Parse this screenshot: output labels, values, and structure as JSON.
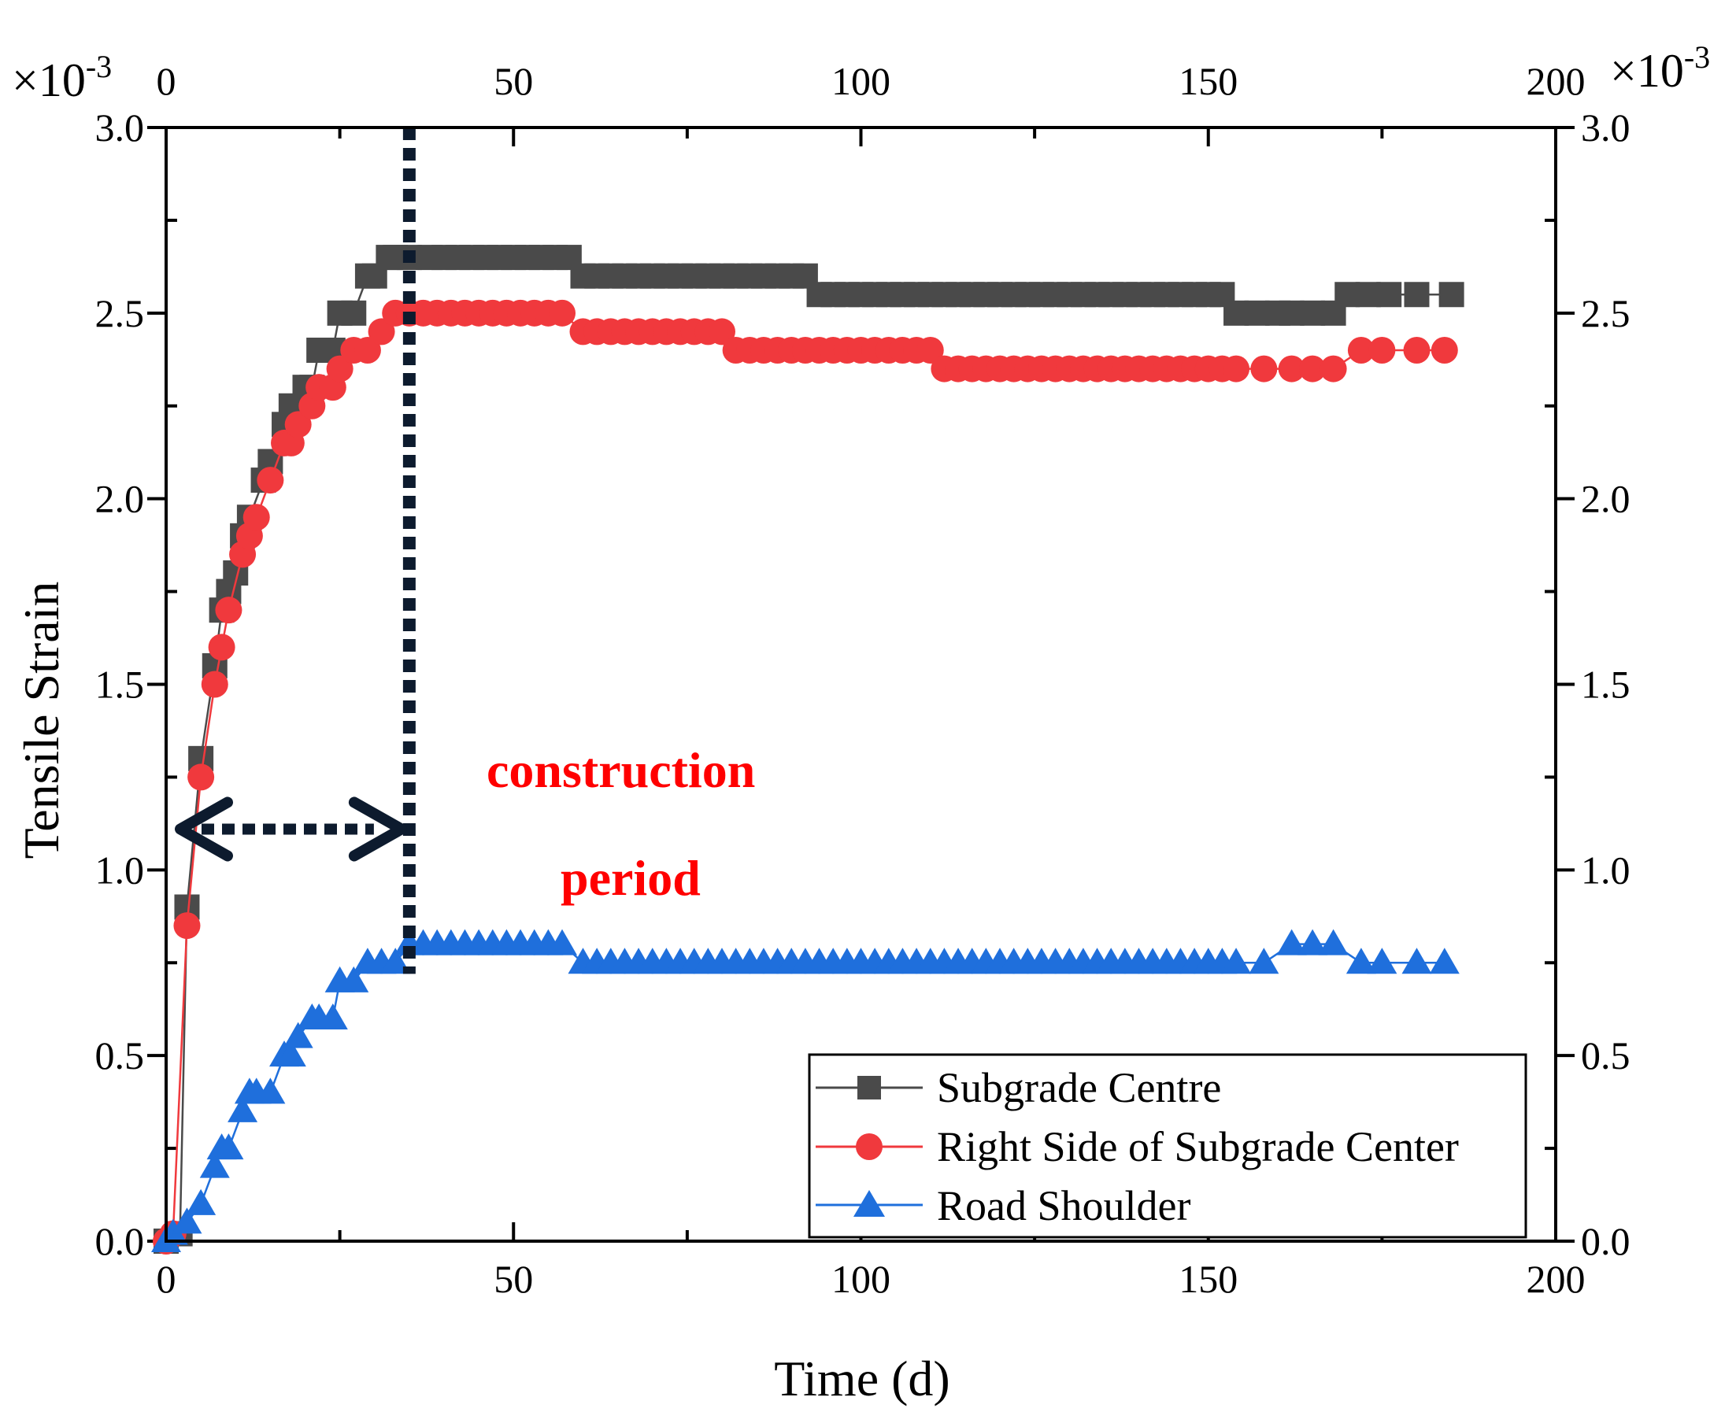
{
  "chart_data": {
    "type": "line",
    "xlabel": "Time (d)",
    "ylabel": "Tensile Strain",
    "xlim": [
      0,
      200
    ],
    "ylim": [
      0.0,
      3.0
    ],
    "x_ticks": [
      "0",
      "50",
      "100",
      "150",
      "200"
    ],
    "x_tick_values": [
      0,
      50,
      100,
      150,
      200
    ],
    "y_ticks": [
      "0.0",
      "0.5",
      "1.0",
      "1.5",
      "2.0",
      "2.5",
      "3.0"
    ],
    "y_tick_values": [
      0,
      0.5,
      1.0,
      1.5,
      2.0,
      2.5,
      3.0
    ],
    "exponent_prefix": "×10",
    "exponent_power": "-3",
    "grid": false,
    "legend_position": "bottom-right",
    "series": [
      {
        "name": "Subgrade Centre",
        "color": "#4a4a4a",
        "marker": "square",
        "x": [
          0,
          2,
          3,
          5,
          7,
          8,
          9,
          10,
          11,
          12,
          14,
          15,
          17,
          18,
          20,
          21,
          22,
          24,
          25,
          27,
          29,
          30,
          32,
          33,
          35,
          38,
          40,
          42,
          44,
          46,
          48,
          50,
          52,
          54,
          56,
          58,
          60,
          62,
          64,
          66,
          68,
          70,
          72,
          74,
          76,
          78,
          80,
          82,
          84,
          86,
          88,
          90,
          92,
          94,
          96,
          98,
          100,
          102,
          104,
          106,
          108,
          110,
          112,
          114,
          116,
          118,
          120,
          122,
          124,
          126,
          128,
          130,
          132,
          134,
          136,
          138,
          140,
          142,
          144,
          146,
          148,
          150,
          152,
          154,
          157,
          160,
          162,
          165,
          168,
          170,
          173,
          176,
          180,
          185
        ],
        "y": [
          0.0,
          0.02,
          0.9,
          1.3,
          1.55,
          1.7,
          1.75,
          1.8,
          1.9,
          1.95,
          2.05,
          2.1,
          2.2,
          2.25,
          2.3,
          2.3,
          2.4,
          2.4,
          2.5,
          2.5,
          2.6,
          2.6,
          2.65,
          2.65,
          2.65,
          2.65,
          2.65,
          2.65,
          2.65,
          2.65,
          2.65,
          2.65,
          2.65,
          2.65,
          2.65,
          2.65,
          2.6,
          2.6,
          2.6,
          2.6,
          2.6,
          2.6,
          2.6,
          2.6,
          2.6,
          2.6,
          2.6,
          2.6,
          2.6,
          2.6,
          2.6,
          2.6,
          2.6,
          2.55,
          2.55,
          2.55,
          2.55,
          2.55,
          2.55,
          2.55,
          2.55,
          2.55,
          2.55,
          2.55,
          2.55,
          2.55,
          2.55,
          2.55,
          2.55,
          2.55,
          2.55,
          2.55,
          2.55,
          2.55,
          2.55,
          2.55,
          2.55,
          2.55,
          2.55,
          2.55,
          2.55,
          2.55,
          2.55,
          2.5,
          2.5,
          2.5,
          2.5,
          2.5,
          2.5,
          2.55,
          2.55,
          2.55,
          2.55,
          2.55
        ]
      },
      {
        "name": "Right Side of Subgrade Center",
        "color": "#f0393d",
        "marker": "circle",
        "x": [
          0,
          1,
          3,
          5,
          7,
          8,
          9,
          11,
          12,
          13,
          15,
          17,
          18,
          19,
          21,
          22,
          24,
          25,
          27,
          29,
          31,
          33,
          35,
          37,
          39,
          41,
          43,
          45,
          47,
          49,
          51,
          53,
          55,
          57,
          60,
          62,
          64,
          66,
          68,
          70,
          72,
          74,
          76,
          78,
          80,
          82,
          84,
          86,
          88,
          90,
          92,
          94,
          96,
          98,
          100,
          102,
          104,
          106,
          108,
          110,
          112,
          114,
          116,
          118,
          120,
          122,
          124,
          126,
          128,
          130,
          132,
          134,
          136,
          138,
          140,
          142,
          144,
          146,
          148,
          150,
          152,
          154,
          158,
          162,
          165,
          168,
          172,
          175,
          180,
          184
        ],
        "y": [
          0.0,
          0.02,
          0.85,
          1.25,
          1.5,
          1.6,
          1.7,
          1.85,
          1.9,
          1.95,
          2.05,
          2.15,
          2.15,
          2.2,
          2.25,
          2.3,
          2.3,
          2.35,
          2.4,
          2.4,
          2.45,
          2.5,
          2.5,
          2.5,
          2.5,
          2.5,
          2.5,
          2.5,
          2.5,
          2.5,
          2.5,
          2.5,
          2.5,
          2.5,
          2.45,
          2.45,
          2.45,
          2.45,
          2.45,
          2.45,
          2.45,
          2.45,
          2.45,
          2.45,
          2.45,
          2.4,
          2.4,
          2.4,
          2.4,
          2.4,
          2.4,
          2.4,
          2.4,
          2.4,
          2.4,
          2.4,
          2.4,
          2.4,
          2.4,
          2.4,
          2.35,
          2.35,
          2.35,
          2.35,
          2.35,
          2.35,
          2.35,
          2.35,
          2.35,
          2.35,
          2.35,
          2.35,
          2.35,
          2.35,
          2.35,
          2.35,
          2.35,
          2.35,
          2.35,
          2.35,
          2.35,
          2.35,
          2.35,
          2.35,
          2.35,
          2.35,
          2.4,
          2.4,
          2.4,
          2.4
        ]
      },
      {
        "name": "Road Shoulder",
        "color": "#1f6fdc",
        "marker": "triangle",
        "x": [
          0,
          1,
          3,
          5,
          7,
          8,
          9,
          11,
          12,
          13,
          15,
          17,
          18,
          19,
          21,
          22,
          24,
          25,
          27,
          29,
          31,
          33,
          35,
          37,
          39,
          41,
          43,
          45,
          47,
          49,
          51,
          53,
          55,
          57,
          60,
          62,
          64,
          66,
          68,
          70,
          72,
          74,
          76,
          78,
          80,
          82,
          84,
          86,
          88,
          90,
          92,
          94,
          96,
          98,
          100,
          102,
          104,
          106,
          108,
          110,
          112,
          114,
          116,
          118,
          120,
          122,
          124,
          126,
          128,
          130,
          132,
          134,
          136,
          138,
          140,
          142,
          144,
          146,
          148,
          150,
          152,
          154,
          158,
          162,
          165,
          168,
          172,
          175,
          180,
          184
        ],
        "y": [
          0.0,
          0.02,
          0.05,
          0.1,
          0.2,
          0.25,
          0.25,
          0.35,
          0.4,
          0.4,
          0.4,
          0.5,
          0.5,
          0.55,
          0.6,
          0.6,
          0.6,
          0.7,
          0.7,
          0.75,
          0.75,
          0.75,
          0.8,
          0.8,
          0.8,
          0.8,
          0.8,
          0.8,
          0.8,
          0.8,
          0.8,
          0.8,
          0.8,
          0.8,
          0.75,
          0.75,
          0.75,
          0.75,
          0.75,
          0.75,
          0.75,
          0.75,
          0.75,
          0.75,
          0.75,
          0.75,
          0.75,
          0.75,
          0.75,
          0.75,
          0.75,
          0.75,
          0.75,
          0.75,
          0.75,
          0.75,
          0.75,
          0.75,
          0.75,
          0.75,
          0.75,
          0.75,
          0.75,
          0.75,
          0.75,
          0.75,
          0.75,
          0.75,
          0.75,
          0.75,
          0.75,
          0.75,
          0.75,
          0.75,
          0.75,
          0.75,
          0.75,
          0.75,
          0.75,
          0.75,
          0.75,
          0.75,
          0.75,
          0.8,
          0.8,
          0.8,
          0.75,
          0.75,
          0.75,
          0.75
        ]
      }
    ],
    "annotations": {
      "line1": "construction",
      "line2": "period",
      "color": "#ff0000",
      "period_end_x": 35,
      "arrow_y": 1.11
    }
  }
}
